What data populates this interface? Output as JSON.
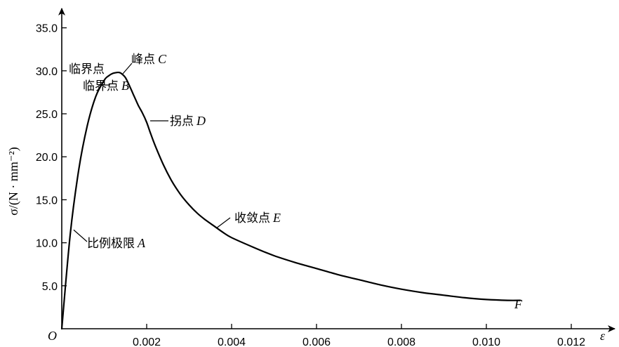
{
  "chart_data": {
    "type": "line",
    "title": "",
    "xlabel": "ε",
    "ylabel": "σ/(N · mm⁻²)",
    "origin_label": "O",
    "xlim": [
      0,
      0.0132
    ],
    "ylim": [
      0,
      37.0
    ],
    "x_ticks": [
      0.002,
      0.004,
      0.006,
      0.008,
      0.01,
      0.012
    ],
    "x_tick_labels": [
      "0.002",
      "0.004",
      "0.006",
      "0.008",
      "0.010",
      "0.012"
    ],
    "y_ticks": [
      5,
      10,
      15,
      20,
      25,
      30,
      35
    ],
    "y_tick_labels": [
      "5.0",
      "10.0",
      "15.0",
      "20.0",
      "25.0",
      "30.0",
      "35.0"
    ],
    "grid": false,
    "series": [
      {
        "x": [
          0,
          0.0002,
          0.0004,
          0.0006,
          0.0008,
          0.001,
          0.0011,
          0.0012,
          0.0013,
          0.00135,
          0.0014,
          0.0015,
          0.0016,
          0.0017,
          0.0018,
          0.0019,
          0.002,
          0.0021,
          0.0022,
          0.0024,
          0.0026,
          0.0028,
          0.003,
          0.0032,
          0.0034,
          0.0036,
          0.0038,
          0.004,
          0.0045,
          0.005,
          0.0055,
          0.006,
          0.0065,
          0.007,
          0.0075,
          0.008,
          0.0085,
          0.009,
          0.0095,
          0.01,
          0.0105,
          0.0108
        ],
        "y": [
          0,
          11.0,
          18.5,
          23.6,
          27.0,
          28.9,
          29.4,
          29.7,
          29.8,
          29.8,
          29.7,
          29.2,
          28.2,
          27.1,
          26.0,
          25.1,
          24.0,
          22.6,
          21.3,
          19.0,
          17.1,
          15.6,
          14.4,
          13.4,
          12.6,
          11.9,
          11.2,
          10.6,
          9.5,
          8.5,
          7.7,
          7.0,
          6.3,
          5.7,
          5.1,
          4.6,
          4.2,
          3.9,
          3.6,
          3.4,
          3.3,
          3.3
        ]
      }
    ],
    "annotations": [
      {
        "text": "比例极限",
        "letter": "A",
        "x": 0.00028,
        "y": 11.5
      },
      {
        "text": "临界点",
        "letter": "B",
        "x": 0.0011,
        "y": 29.2
      },
      {
        "text": "峰点",
        "letter": "C",
        "x": 0.00155,
        "y": 29.8
      },
      {
        "text": "拐点",
        "letter": "D",
        "x": 0.00205,
        "y": 24.0
      },
      {
        "text": "收敛点",
        "letter": "E",
        "x": 0.0037,
        "y": 11.5
      },
      {
        "text": "",
        "letter": "F",
        "x": 0.0108,
        "y": 3.3
      }
    ]
  }
}
